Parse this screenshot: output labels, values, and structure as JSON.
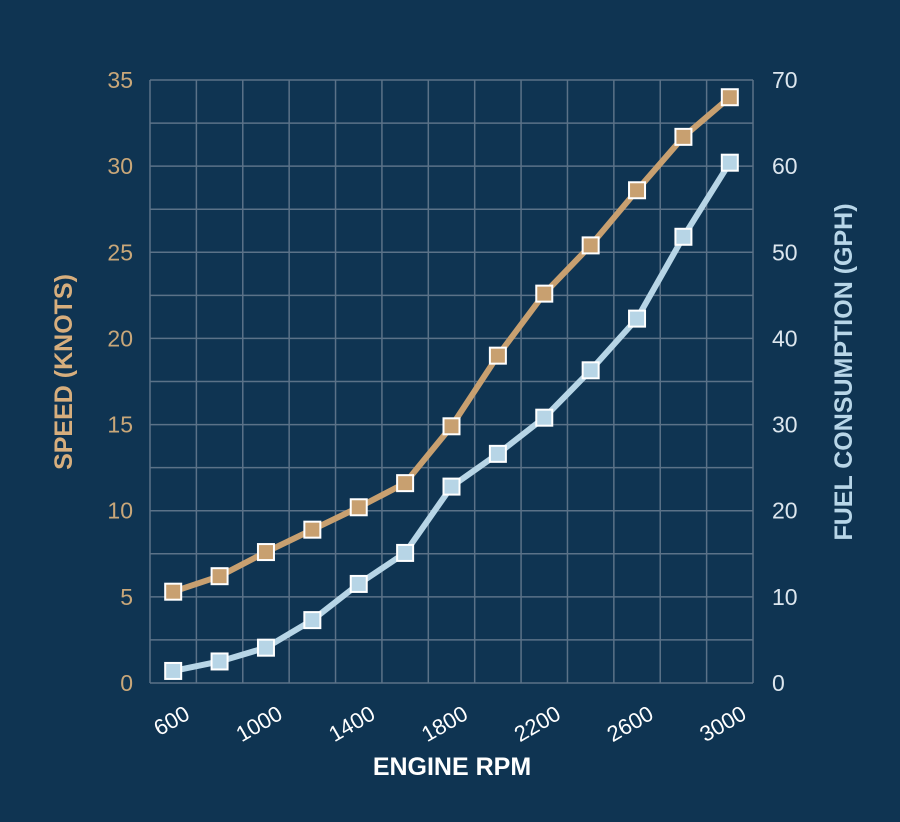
{
  "chart_data": {
    "type": "line",
    "x": [
      600,
      800,
      1000,
      1200,
      1400,
      1600,
      1800,
      2000,
      2200,
      2400,
      2600,
      2800,
      3000
    ],
    "xlabel": "ENGINE RPM",
    "xticks": [
      "600",
      "1000",
      "1400",
      "1800",
      "2200",
      "2600",
      "3000"
    ],
    "xlim": [
      600,
      3000
    ],
    "ylabel_left": "SPEED (KNOTS)",
    "ylim_left": [
      0,
      35
    ],
    "yticks_left": [
      "0",
      "5",
      "10",
      "15",
      "20",
      "25",
      "30",
      "35"
    ],
    "ylabel_right": "FUEL CONSUMPTION (GPH)",
    "ylim_right": [
      0,
      70
    ],
    "yticks_right": [
      "0",
      "10",
      "20",
      "30",
      "40",
      "50",
      "60",
      "70"
    ],
    "grid": true,
    "series": [
      {
        "axis": "left",
        "color": "#c8a070",
        "values": [
          5.3,
          6.2,
          7.6,
          8.9,
          10.2,
          11.6,
          14.9,
          19.0,
          22.6,
          25.4,
          28.6,
          31.7,
          34.0
        ]
      },
      {
        "axis": "right",
        "color": "#b7d5e6",
        "values": [
          1.4,
          2.5,
          4.1,
          7.3,
          11.5,
          15.1,
          22.8,
          26.6,
          30.8,
          36.3,
          42.3,
          51.8,
          60.4
        ]
      }
    ]
  }
}
